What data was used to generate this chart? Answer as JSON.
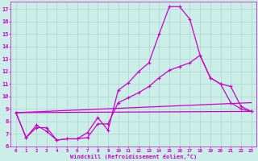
{
  "xlabel": "Windchill (Refroidissement éolien,°C)",
  "background_color": "#cceee8",
  "grid_color": "#aad4cc",
  "line_color": "#cc00cc",
  "xlim": [
    -0.5,
    23.5
  ],
  "ylim": [
    6,
    17.6
  ],
  "yticks": [
    6,
    7,
    8,
    9,
    10,
    11,
    12,
    13,
    14,
    15,
    16,
    17
  ],
  "xticks": [
    0,
    1,
    2,
    3,
    4,
    5,
    6,
    7,
    8,
    9,
    10,
    11,
    12,
    13,
    14,
    15,
    16,
    17,
    18,
    19,
    20,
    21,
    22,
    23
  ],
  "line1_x": [
    0,
    1,
    2,
    3,
    4,
    5,
    6,
    7,
    8,
    9,
    10,
    11,
    12,
    13,
    14,
    15,
    16,
    17,
    18,
    19,
    20,
    21,
    22,
    23
  ],
  "line1_y": [
    8.7,
    6.7,
    7.7,
    7.2,
    6.5,
    6.6,
    6.6,
    7.1,
    8.3,
    7.3,
    10.5,
    11.1,
    12.0,
    12.7,
    15.0,
    17.2,
    17.2,
    16.2,
    13.3,
    11.5,
    11.0,
    9.5,
    9.0,
    8.8
  ],
  "line2_x": [
    0,
    1,
    2,
    3,
    4,
    5,
    6,
    7,
    8,
    9,
    10,
    11,
    12,
    13,
    14,
    15,
    16,
    17,
    18,
    19,
    20,
    21,
    22,
    23
  ],
  "line2_y": [
    8.7,
    6.7,
    7.5,
    7.5,
    6.5,
    6.6,
    6.6,
    6.7,
    7.8,
    7.8,
    9.5,
    9.9,
    10.3,
    10.8,
    11.5,
    12.1,
    12.4,
    12.7,
    13.3,
    11.5,
    11.0,
    10.8,
    9.2,
    8.8
  ],
  "line3_x": [
    0,
    23
  ],
  "line3_y": [
    8.7,
    9.5
  ],
  "line4_x": [
    0,
    23
  ],
  "line4_y": [
    8.7,
    8.8
  ],
  "marker": "+",
  "markersize": 3,
  "linewidth": 0.9
}
